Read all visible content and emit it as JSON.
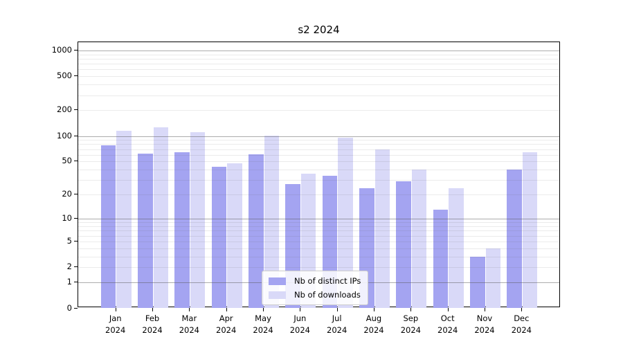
{
  "title": "s2 2024",
  "chart_data": {
    "type": "bar",
    "title": "s2 2024",
    "xlabel": "",
    "ylabel": "",
    "yscale": "log10(value+1)",
    "ylim": [
      0,
      1250
    ],
    "grid": "on",
    "legend_position": "bottom-center",
    "categories": [
      "Jan 2024",
      "Feb 2024",
      "Mar 2024",
      "Apr 2024",
      "May 2024",
      "Jun 2024",
      "Jul 2024",
      "Aug 2024",
      "Sep 2024",
      "Oct 2024",
      "Nov 2024",
      "Dec 2024"
    ],
    "series": [
      {
        "name": "Nb of distinct IPs",
        "color": "#a4a4f1",
        "values": [
          78,
          62,
          65,
          43,
          61,
          27,
          34,
          24,
          29,
          13,
          3,
          40
        ]
      },
      {
        "name": "Nb of downloads",
        "color": "#d9d9f8",
        "values": [
          116,
          126,
          112,
          48,
          102,
          36,
          96,
          70,
          40,
          24,
          4,
          65
        ]
      }
    ],
    "yticks": [
      0,
      1,
      2,
      5,
      10,
      20,
      50,
      100,
      200,
      500,
      1000
    ],
    "major_gridlines": [
      1,
      10,
      100,
      1000
    ],
    "minor_gridlines": [
      2,
      3,
      4,
      5,
      6,
      7,
      8,
      9,
      20,
      30,
      40,
      50,
      60,
      70,
      80,
      90,
      200,
      300,
      400,
      500,
      600,
      700,
      800,
      900
    ]
  },
  "colors": {
    "spine": "#000000",
    "major_grid": "#a9a9a9",
    "minor_grid": "#e8e8e8",
    "background": "#ffffff"
  }
}
